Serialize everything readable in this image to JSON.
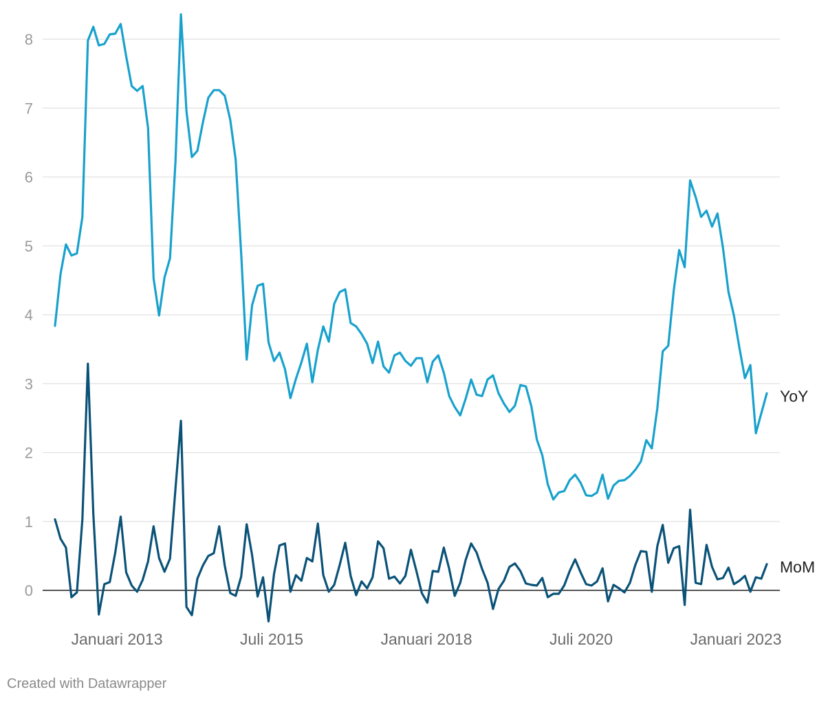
{
  "chart_data": {
    "type": "line",
    "x_start": "2012-01",
    "x_end": "2023-07",
    "xticks": [
      "Januari 2013",
      "Juli 2015",
      "Januari 2018",
      "Juli 2020",
      "Januari 2023"
    ],
    "xtick_dates": [
      "2013-01",
      "2015-07",
      "2018-01",
      "2020-07",
      "2023-01"
    ],
    "yticks": [
      0,
      1,
      2,
      3,
      4,
      5,
      6,
      7,
      8
    ],
    "ylim": [
      -0.5,
      8.4
    ],
    "grid": true,
    "series": [
      {
        "name": "YoY",
        "color": "#18a1cd",
        "values": [
          3.84,
          4.59,
          5.02,
          4.86,
          4.89,
          5.42,
          7.98,
          8.18,
          7.91,
          7.93,
          8.07,
          8.08,
          8.22,
          7.75,
          7.32,
          7.25,
          7.32,
          6.71,
          4.53,
          3.99,
          4.54,
          4.82,
          6.23,
          8.36,
          6.96,
          6.29,
          6.38,
          6.79,
          7.15,
          7.26,
          7.26,
          7.18,
          6.83,
          6.25,
          4.89,
          3.35,
          4.14,
          4.42,
          4.45,
          3.6,
          3.33,
          3.45,
          3.21,
          2.79,
          3.07,
          3.31,
          3.58,
          3.02,
          3.49,
          3.83,
          3.61,
          4.16,
          4.33,
          4.37,
          3.88,
          3.83,
          3.72,
          3.58,
          3.3,
          3.61,
          3.25,
          3.16,
          3.41,
          3.45,
          3.33,
          3.26,
          3.37,
          3.37,
          3.02,
          3.32,
          3.41,
          3.16,
          2.82,
          2.66,
          2.54,
          2.78,
          3.06,
          2.84,
          2.82,
          3.06,
          3.12,
          2.86,
          2.71,
          2.59,
          2.68,
          2.98,
          2.96,
          2.67,
          2.19,
          1.96,
          1.54,
          1.32,
          1.42,
          1.44,
          1.6,
          1.68,
          1.56,
          1.38,
          1.37,
          1.42,
          1.68,
          1.33,
          1.52,
          1.59,
          1.6,
          1.66,
          1.75,
          1.87,
          2.18,
          2.06,
          2.64,
          3.47,
          3.55,
          4.35,
          4.94,
          4.69,
          5.95,
          5.71,
          5.42,
          5.51,
          5.28,
          5.47,
          4.97,
          4.33,
          3.99,
          3.52,
          3.08,
          3.27,
          2.28,
          2.57,
          2.86
        ]
      },
      {
        "name": "MoM",
        "color": "#0a5278",
        "values": [
          1.03,
          0.75,
          0.62,
          -0.1,
          -0.03,
          1.03,
          3.29,
          1.11,
          -0.35,
          0.09,
          0.12,
          0.55,
          1.07,
          0.26,
          0.07,
          -0.02,
          0.15,
          0.42,
          0.93,
          0.47,
          0.27,
          0.46,
          1.48,
          2.46,
          -0.24,
          -0.36,
          0.17,
          0.36,
          0.5,
          0.54,
          0.93,
          0.36,
          -0.04,
          -0.08,
          0.2,
          0.96,
          0.51,
          -0.09,
          0.19,
          -0.45,
          0.24,
          0.65,
          0.68,
          -0.02,
          0.22,
          0.14,
          0.47,
          0.42,
          0.97,
          0.22,
          -0.02,
          0.08,
          0.37,
          0.69,
          0.21,
          -0.07,
          0.13,
          0.03,
          0.19,
          0.71,
          0.61,
          0.17,
          0.2,
          0.1,
          0.21,
          0.59,
          0.28,
          -0.04,
          -0.18,
          0.28,
          0.27,
          0.62,
          0.31,
          -0.08,
          0.11,
          0.44,
          0.68,
          0.55,
          0.31,
          0.11,
          -0.27,
          0.02,
          0.14,
          0.34,
          0.39,
          0.28,
          0.1,
          0.08,
          0.07,
          0.18,
          -0.1,
          -0.05,
          -0.05,
          0.07,
          0.28,
          0.45,
          0.26,
          0.09,
          0.07,
          0.13,
          0.32,
          -0.16,
          0.08,
          0.03,
          -0.03,
          0.11,
          0.37,
          0.57,
          0.56,
          -0.02,
          0.64,
          0.95,
          0.4,
          0.61,
          0.64,
          -0.21,
          1.17,
          0.11,
          0.09,
          0.66,
          0.34,
          0.16,
          0.18,
          0.33,
          0.09,
          0.14,
          0.21,
          -0.02,
          0.19,
          0.17,
          0.38
        ]
      }
    ]
  },
  "footer": {
    "credit": "Created with Datawrapper"
  }
}
